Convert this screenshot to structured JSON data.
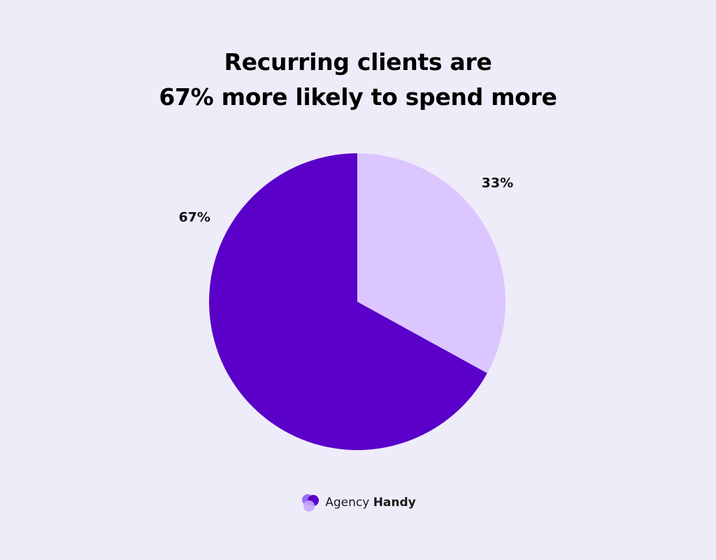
{
  "title_lines": [
    "Recurring clients are",
    "67% more likely to spend more"
  ],
  "brand": {
    "name_regular": "Agency",
    "name_bold": "Handy",
    "logo_icon": "agency-handy-logo-icon",
    "logo_colors": [
      "#9b6df7",
      "#5a00c9",
      "#c9a8ff"
    ]
  },
  "chart_data": {
    "type": "pie",
    "title": "Recurring clients are 67% more likely to spend more",
    "slices": [
      {
        "value": 33,
        "label": "33%",
        "color": "#dcc6ff"
      },
      {
        "value": 67,
        "label": "67%",
        "color": "#5a00c9"
      }
    ],
    "start": "top, clockwise",
    "background": "#efecf9"
  }
}
